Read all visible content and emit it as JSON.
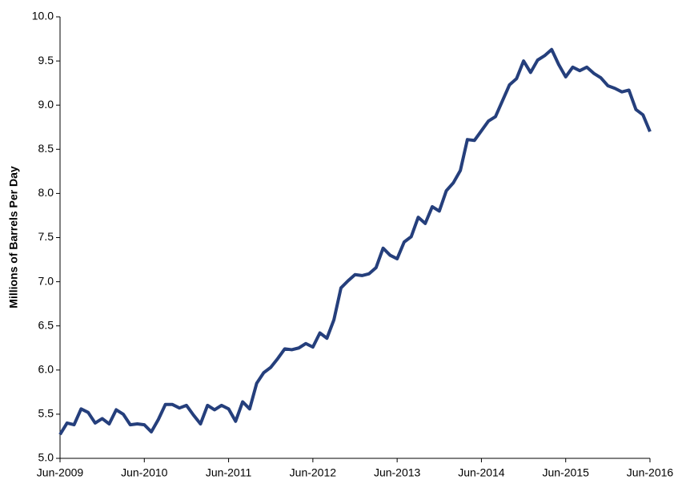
{
  "chart_data": {
    "type": "line",
    "y_label": "Millions of Barrels Per Day",
    "categories": [
      "Jun-2009",
      null,
      null,
      null,
      null,
      null,
      null,
      null,
      null,
      null,
      null,
      null,
      "Jun-2010",
      null,
      null,
      null,
      null,
      null,
      null,
      null,
      null,
      null,
      null,
      null,
      "Jun-2011",
      null,
      null,
      null,
      null,
      null,
      null,
      null,
      null,
      null,
      null,
      null,
      "Jun-2012",
      null,
      null,
      null,
      null,
      null,
      null,
      null,
      null,
      null,
      null,
      null,
      "Jun-2013",
      null,
      null,
      null,
      null,
      null,
      null,
      null,
      null,
      null,
      null,
      null,
      "Jun-2014",
      null,
      null,
      null,
      null,
      null,
      null,
      null,
      null,
      null,
      null,
      null,
      "Jun-2015",
      null,
      null,
      null,
      null,
      null,
      null,
      null,
      null,
      null,
      null,
      null,
      "Jun-2016"
    ],
    "values": [
      5.27,
      5.4,
      5.38,
      5.56,
      5.52,
      5.4,
      5.45,
      5.39,
      5.55,
      5.5,
      5.38,
      5.39,
      5.38,
      5.3,
      5.44,
      5.61,
      5.61,
      5.57,
      5.6,
      5.49,
      5.39,
      5.6,
      5.55,
      5.6,
      5.56,
      5.42,
      5.64,
      5.56,
      5.85,
      5.97,
      6.03,
      6.13,
      6.24,
      6.23,
      6.25,
      6.3,
      6.26,
      6.42,
      6.36,
      6.57,
      6.93,
      7.01,
      7.08,
      7.07,
      7.09,
      7.16,
      7.38,
      7.3,
      7.26,
      7.45,
      7.51,
      7.73,
      7.66,
      7.85,
      7.8,
      8.03,
      8.12,
      8.26,
      8.61,
      8.6,
      8.71,
      8.82,
      8.87,
      9.05,
      9.23,
      9.3,
      9.5,
      9.37,
      9.51,
      9.56,
      9.63,
      9.46,
      9.32,
      9.43,
      9.39,
      9.43,
      9.36,
      9.31,
      9.22,
      9.19,
      9.15,
      9.17,
      8.95,
      8.89,
      8.7
    ],
    "color": "#253f7c",
    "ylim": [
      5.0,
      10.0
    ],
    "yticks": [
      {
        "value": 5.0,
        "label": "5.0"
      },
      5.5,
      {
        "value": 6.0,
        "label": "6.0"
      },
      6.5,
      {
        "value": 7.0,
        "label": "7.0"
      },
      7.5,
      {
        "value": 8.0,
        "label": "8.0"
      },
      8.5,
      {
        "value": 9.0,
        "label": "9.0"
      },
      9.5,
      {
        "value": 10.0,
        "label": "10.0"
      }
    ],
    "grid": false
  }
}
